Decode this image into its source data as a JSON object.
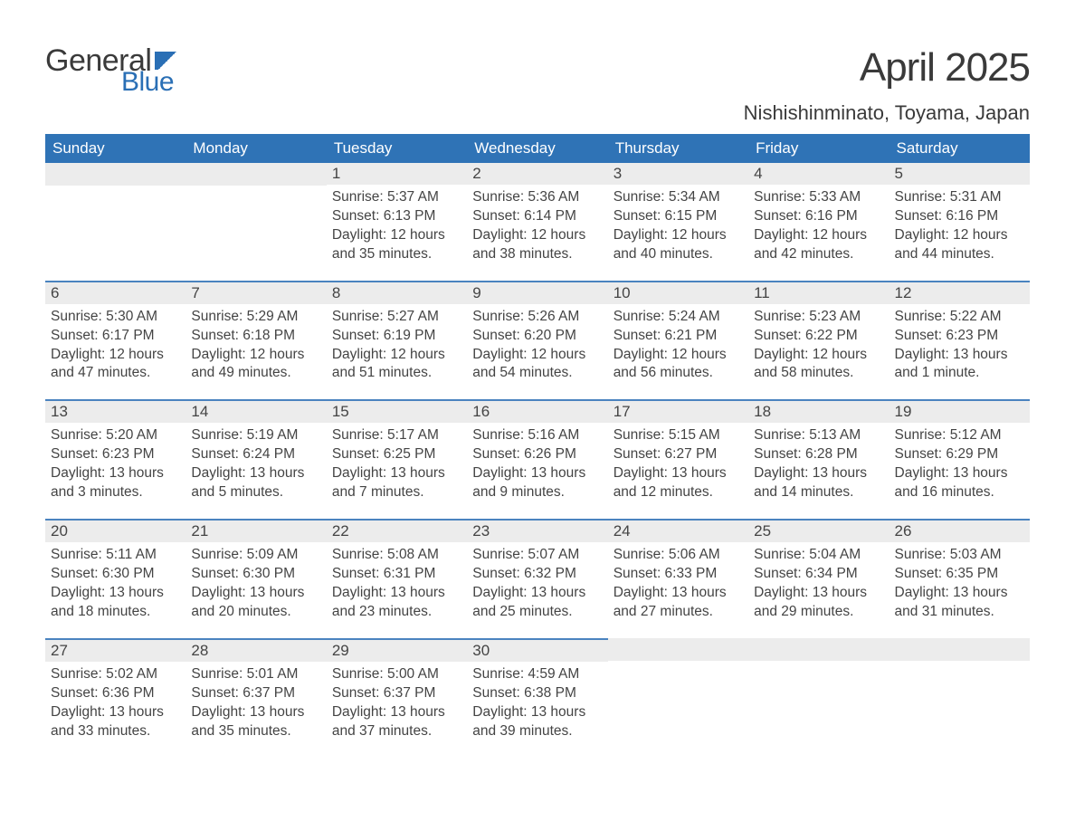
{
  "logo": {
    "word1": "General",
    "word2": "Blue"
  },
  "title": "April 2025",
  "location": "Nishishinminato, Toyama, Japan",
  "colors": {
    "header_bg": "#2f73b6",
    "header_text": "#ffffff",
    "strip_bg": "#ececec",
    "strip_border": "#4a83bf",
    "text": "#444444",
    "logo_gray": "#3a3a3a",
    "logo_blue": "#2a6fb5",
    "page_bg": "#ffffff"
  },
  "typography": {
    "title_fontsize": 44,
    "location_fontsize": 22,
    "dayheader_fontsize": 17,
    "date_fontsize": 17,
    "body_fontsize": 15.5
  },
  "day_names": [
    "Sunday",
    "Monday",
    "Tuesday",
    "Wednesday",
    "Thursday",
    "Friday",
    "Saturday"
  ],
  "weeks": [
    [
      null,
      null,
      {
        "date": "1",
        "sunrise": "Sunrise: 5:37 AM",
        "sunset": "Sunset: 6:13 PM",
        "daylight1": "Daylight: 12 hours",
        "daylight2": "and 35 minutes."
      },
      {
        "date": "2",
        "sunrise": "Sunrise: 5:36 AM",
        "sunset": "Sunset: 6:14 PM",
        "daylight1": "Daylight: 12 hours",
        "daylight2": "and 38 minutes."
      },
      {
        "date": "3",
        "sunrise": "Sunrise: 5:34 AM",
        "sunset": "Sunset: 6:15 PM",
        "daylight1": "Daylight: 12 hours",
        "daylight2": "and 40 minutes."
      },
      {
        "date": "4",
        "sunrise": "Sunrise: 5:33 AM",
        "sunset": "Sunset: 6:16 PM",
        "daylight1": "Daylight: 12 hours",
        "daylight2": "and 42 minutes."
      },
      {
        "date": "5",
        "sunrise": "Sunrise: 5:31 AM",
        "sunset": "Sunset: 6:16 PM",
        "daylight1": "Daylight: 12 hours",
        "daylight2": "and 44 minutes."
      }
    ],
    [
      {
        "date": "6",
        "sunrise": "Sunrise: 5:30 AM",
        "sunset": "Sunset: 6:17 PM",
        "daylight1": "Daylight: 12 hours",
        "daylight2": "and 47 minutes."
      },
      {
        "date": "7",
        "sunrise": "Sunrise: 5:29 AM",
        "sunset": "Sunset: 6:18 PM",
        "daylight1": "Daylight: 12 hours",
        "daylight2": "and 49 minutes."
      },
      {
        "date": "8",
        "sunrise": "Sunrise: 5:27 AM",
        "sunset": "Sunset: 6:19 PM",
        "daylight1": "Daylight: 12 hours",
        "daylight2": "and 51 minutes."
      },
      {
        "date": "9",
        "sunrise": "Sunrise: 5:26 AM",
        "sunset": "Sunset: 6:20 PM",
        "daylight1": "Daylight: 12 hours",
        "daylight2": "and 54 minutes."
      },
      {
        "date": "10",
        "sunrise": "Sunrise: 5:24 AM",
        "sunset": "Sunset: 6:21 PM",
        "daylight1": "Daylight: 12 hours",
        "daylight2": "and 56 minutes."
      },
      {
        "date": "11",
        "sunrise": "Sunrise: 5:23 AM",
        "sunset": "Sunset: 6:22 PM",
        "daylight1": "Daylight: 12 hours",
        "daylight2": "and 58 minutes."
      },
      {
        "date": "12",
        "sunrise": "Sunrise: 5:22 AM",
        "sunset": "Sunset: 6:23 PM",
        "daylight1": "Daylight: 13 hours",
        "daylight2": "and 1 minute."
      }
    ],
    [
      {
        "date": "13",
        "sunrise": "Sunrise: 5:20 AM",
        "sunset": "Sunset: 6:23 PM",
        "daylight1": "Daylight: 13 hours",
        "daylight2": "and 3 minutes."
      },
      {
        "date": "14",
        "sunrise": "Sunrise: 5:19 AM",
        "sunset": "Sunset: 6:24 PM",
        "daylight1": "Daylight: 13 hours",
        "daylight2": "and 5 minutes."
      },
      {
        "date": "15",
        "sunrise": "Sunrise: 5:17 AM",
        "sunset": "Sunset: 6:25 PM",
        "daylight1": "Daylight: 13 hours",
        "daylight2": "and 7 minutes."
      },
      {
        "date": "16",
        "sunrise": "Sunrise: 5:16 AM",
        "sunset": "Sunset: 6:26 PM",
        "daylight1": "Daylight: 13 hours",
        "daylight2": "and 9 minutes."
      },
      {
        "date": "17",
        "sunrise": "Sunrise: 5:15 AM",
        "sunset": "Sunset: 6:27 PM",
        "daylight1": "Daylight: 13 hours",
        "daylight2": "and 12 minutes."
      },
      {
        "date": "18",
        "sunrise": "Sunrise: 5:13 AM",
        "sunset": "Sunset: 6:28 PM",
        "daylight1": "Daylight: 13 hours",
        "daylight2": "and 14 minutes."
      },
      {
        "date": "19",
        "sunrise": "Sunrise: 5:12 AM",
        "sunset": "Sunset: 6:29 PM",
        "daylight1": "Daylight: 13 hours",
        "daylight2": "and 16 minutes."
      }
    ],
    [
      {
        "date": "20",
        "sunrise": "Sunrise: 5:11 AM",
        "sunset": "Sunset: 6:30 PM",
        "daylight1": "Daylight: 13 hours",
        "daylight2": "and 18 minutes."
      },
      {
        "date": "21",
        "sunrise": "Sunrise: 5:09 AM",
        "sunset": "Sunset: 6:30 PM",
        "daylight1": "Daylight: 13 hours",
        "daylight2": "and 20 minutes."
      },
      {
        "date": "22",
        "sunrise": "Sunrise: 5:08 AM",
        "sunset": "Sunset: 6:31 PM",
        "daylight1": "Daylight: 13 hours",
        "daylight2": "and 23 minutes."
      },
      {
        "date": "23",
        "sunrise": "Sunrise: 5:07 AM",
        "sunset": "Sunset: 6:32 PM",
        "daylight1": "Daylight: 13 hours",
        "daylight2": "and 25 minutes."
      },
      {
        "date": "24",
        "sunrise": "Sunrise: 5:06 AM",
        "sunset": "Sunset: 6:33 PM",
        "daylight1": "Daylight: 13 hours",
        "daylight2": "and 27 minutes."
      },
      {
        "date": "25",
        "sunrise": "Sunrise: 5:04 AM",
        "sunset": "Sunset: 6:34 PM",
        "daylight1": "Daylight: 13 hours",
        "daylight2": "and 29 minutes."
      },
      {
        "date": "26",
        "sunrise": "Sunrise: 5:03 AM",
        "sunset": "Sunset: 6:35 PM",
        "daylight1": "Daylight: 13 hours",
        "daylight2": "and 31 minutes."
      }
    ],
    [
      {
        "date": "27",
        "sunrise": "Sunrise: 5:02 AM",
        "sunset": "Sunset: 6:36 PM",
        "daylight1": "Daylight: 13 hours",
        "daylight2": "and 33 minutes."
      },
      {
        "date": "28",
        "sunrise": "Sunrise: 5:01 AM",
        "sunset": "Sunset: 6:37 PM",
        "daylight1": "Daylight: 13 hours",
        "daylight2": "and 35 minutes."
      },
      {
        "date": "29",
        "sunrise": "Sunrise: 5:00 AM",
        "sunset": "Sunset: 6:37 PM",
        "daylight1": "Daylight: 13 hours",
        "daylight2": "and 37 minutes."
      },
      {
        "date": "30",
        "sunrise": "Sunrise: 4:59 AM",
        "sunset": "Sunset: 6:38 PM",
        "daylight1": "Daylight: 13 hours",
        "daylight2": "and 39 minutes."
      },
      null,
      null,
      null
    ]
  ]
}
